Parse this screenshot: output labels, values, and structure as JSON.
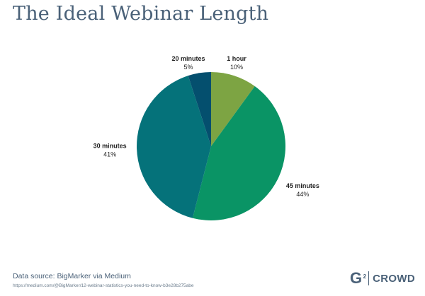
{
  "title": "The Ideal Webinar Length",
  "chart_data": {
    "type": "pie",
    "start": "12 o'clock, clockwise",
    "slices": [
      {
        "label": "1 hour",
        "value": 10,
        "display": "10%",
        "color": "#7da443"
      },
      {
        "label": "45 minutes",
        "value": 44,
        "display": "44%",
        "color": "#0a9465"
      },
      {
        "label": "30 minutes",
        "value": 41,
        "display": "41%",
        "color": "#05727a"
      },
      {
        "label": "20 minutes",
        "value": 5,
        "display": "5%",
        "color": "#044f6e"
      }
    ]
  },
  "footer": {
    "source": "Data source: BigMarker via Medium",
    "url": "https://medium.com/@BigMarker/12-webinar-statistics-you-need-to-know-b3e28b275abe"
  },
  "logo": {
    "mark": "G",
    "superscript": "2",
    "text": "CROWD"
  }
}
